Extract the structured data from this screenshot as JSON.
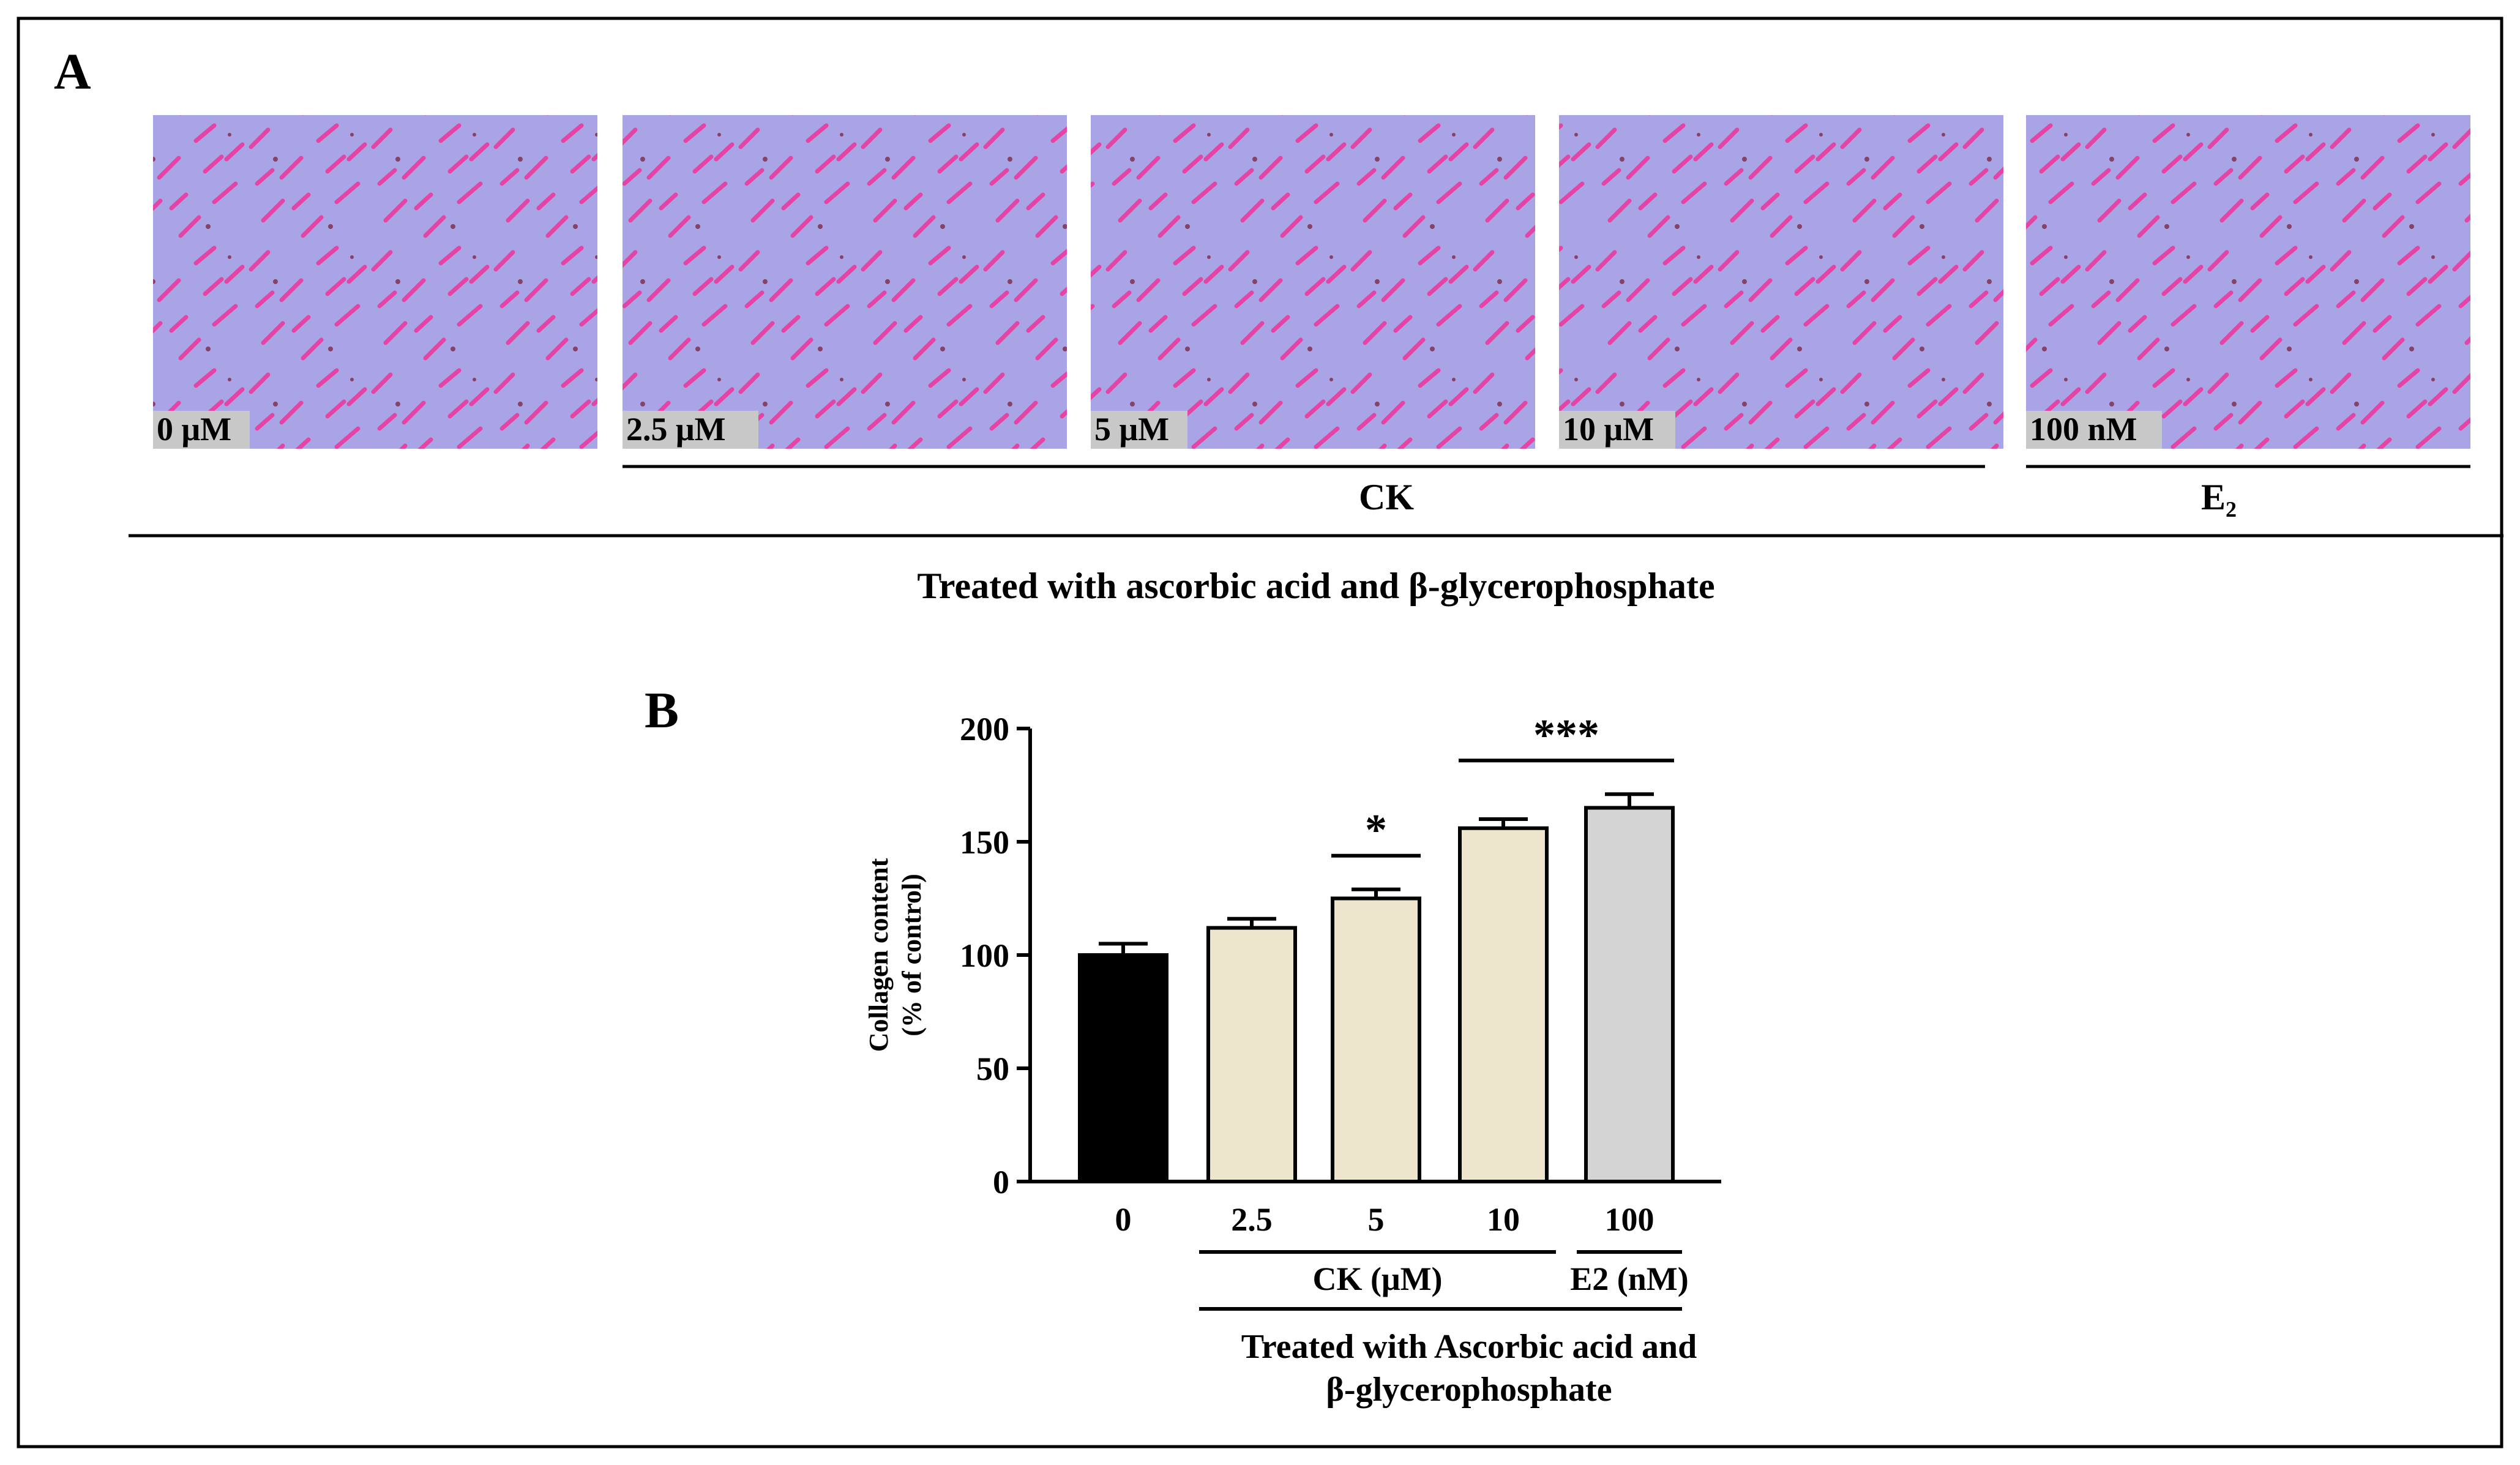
{
  "panel_a": {
    "label": "A",
    "images": [
      {
        "label": "0 μM"
      },
      {
        "label": "2.5 μM"
      },
      {
        "label": "5 μM"
      },
      {
        "label": "10 μM"
      },
      {
        "label": "100 nM"
      }
    ],
    "group_ck": "CK",
    "group_e2": "E₂",
    "treatment": "Treated with ascorbic acid and β-glycerophosphate",
    "colors": {
      "stain_background": "#a9a4e6",
      "stain_cells": "#f0339a"
    }
  },
  "chart_data": {
    "type": "bar",
    "panel_label": "B",
    "categories": [
      "0",
      "2.5",
      "5",
      "10",
      "100"
    ],
    "values": [
      100,
      112,
      125,
      156,
      165
    ],
    "errors": [
      5,
      4,
      4,
      4,
      6
    ],
    "colors": [
      "#000000",
      "#ede6cc",
      "#ede6cc",
      "#ede6cc",
      "#d4d4d4"
    ],
    "ylabel_lines": [
      "Collagen content",
      "(% of control)"
    ],
    "ylim": [
      0,
      200
    ],
    "yticks": [
      0,
      50,
      100,
      150,
      200
    ],
    "significance": [
      {
        "from": 2,
        "to": 2,
        "text": "*"
      },
      {
        "from": 3,
        "to": 4,
        "text": "***"
      }
    ],
    "group_labels": [
      {
        "from": 1,
        "to": 3,
        "text": "CK (μM)"
      },
      {
        "from": 4,
        "to": 4,
        "text": "E2 (nM)"
      }
    ],
    "treatment_lines": [
      "Treated with Ascorbic acid  and",
      "β-glycerophosphate"
    ]
  }
}
